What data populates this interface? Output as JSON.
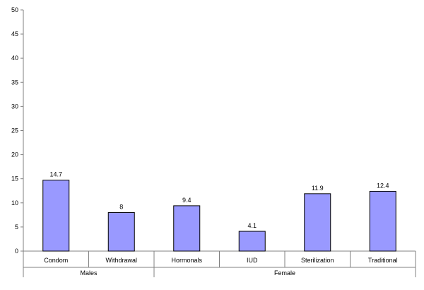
{
  "chart_data": {
    "type": "bar",
    "categories": [
      "Condom",
      "Withdrawal",
      "Hormonals",
      "IUD",
      "Sterilization",
      "Traditional"
    ],
    "values": [
      14.7,
      8,
      9.4,
      4.1,
      11.9,
      12.4
    ],
    "data_labels": [
      "14.7",
      "8",
      "9.4",
      "4.1",
      "11.9",
      "12.4"
    ],
    "groups": [
      {
        "label": "Males",
        "categories": [
          "Condom",
          "Withdrawal"
        ]
      },
      {
        "label": "Female",
        "categories": [
          "Hormonals",
          "IUD",
          "Sterilization",
          "Traditional"
        ]
      }
    ],
    "y_ticks": [
      "0",
      "5",
      "10",
      "15",
      "20",
      "25",
      "30",
      "35",
      "40",
      "45",
      "50"
    ],
    "ylim": [
      0,
      50
    ],
    "grid": false,
    "legend": "none",
    "colors": {
      "bar_fill": "#9999ff",
      "bar_stroke": "#000000",
      "axis": "#808080"
    }
  }
}
